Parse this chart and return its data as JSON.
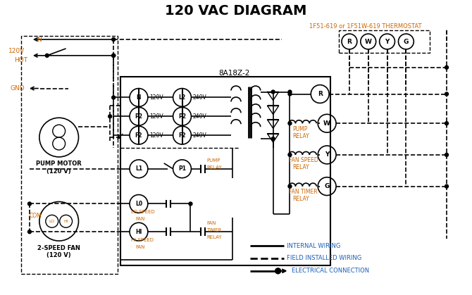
{
  "title": "120 VAC DIAGRAM",
  "title_fontsize": 14,
  "title_fontweight": "bold",
  "bg_color": "#ffffff",
  "line_color": "#000000",
  "orange_color": "#cc6600",
  "blue_color": "#1a5cb5",
  "thermostat_label": "1F51-619 or 1F51W-619 THERMOSTAT",
  "control_box_label": "8A18Z-2"
}
